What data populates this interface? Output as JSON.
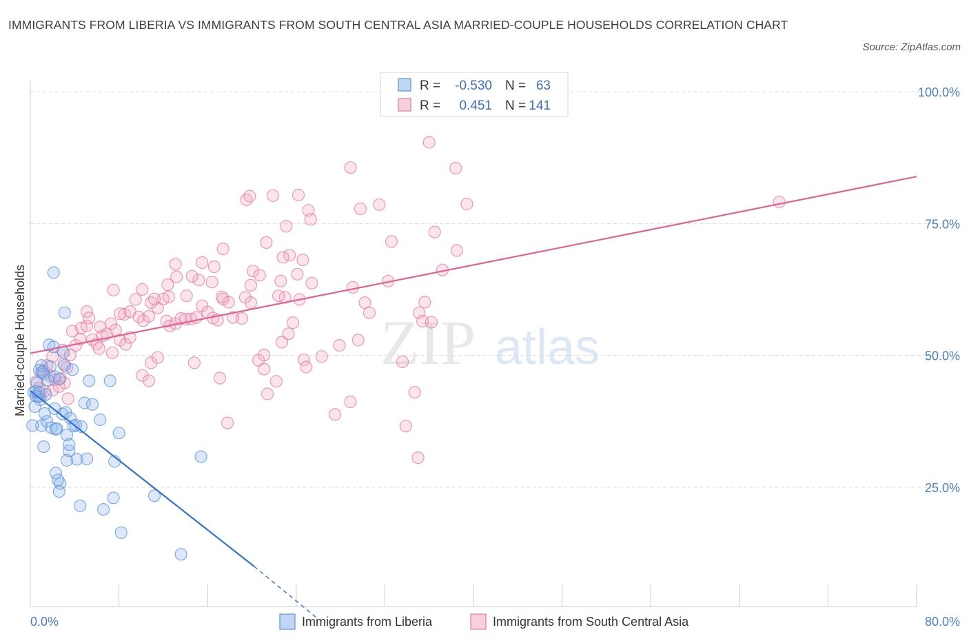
{
  "title": "IMMIGRANTS FROM LIBERIA VS IMMIGRANTS FROM SOUTH CENTRAL ASIA MARRIED-COUPLE HOUSEHOLDS CORRELATION CHART",
  "source": "Source: ZipAtlas.com",
  "watermark": {
    "zip": "ZIP",
    "atlas": "atlas"
  },
  "colors": {
    "blue": "#5b93d9",
    "blue_fill": "rgba(140,180,235,0.30)",
    "blue_line": "#2f72d0",
    "pink": "#e8799c",
    "pink_fill": "rgba(240,170,195,0.30)",
    "pink_line": "#e0628e",
    "grid": "#dcdcdc",
    "axis_text": "#4a7fc4"
  },
  "legend_stats": {
    "rows": [
      {
        "r_label": "R =",
        "r_value": "-0.530",
        "n_label": "N =",
        "n_value": "63"
      },
      {
        "r_label": "R =",
        "r_value": "0.451",
        "n_label": "N =",
        "n_value": "141"
      }
    ]
  },
  "chart_data": {
    "type": "scatter",
    "title": "IMMIGRANTS FROM LIBERIA VS IMMIGRANTS FROM SOUTH CENTRAL ASIA MARRIED-COUPLE HOUSEHOLDS CORRELATION CHART",
    "xlabel": "",
    "ylabel": "Married-couple Households",
    "xlim": [
      0,
      80
    ],
    "ylim": [
      0,
      100
    ],
    "x_tick_labels": [
      "0.0%",
      "80.0%"
    ],
    "y_ticks": [
      25,
      50,
      75,
      100
    ],
    "y_tick_labels": [
      "25.0%",
      "50.0%",
      "75.0%",
      "100.0%"
    ],
    "grid": true,
    "legend_position": "bottom-center",
    "series": [
      {
        "name": "Immigrants from Liberia",
        "color": "blue",
        "R": -0.53,
        "N": 63,
        "trend": {
          "x0": 0,
          "y0": 43.3,
          "x1": 20.2,
          "y1": 10.0,
          "dash_to_x": 26.0,
          "dash_to_y": 0
        },
        "points": [
          [
            0.3,
            43.0
          ],
          [
            0.5,
            42.3
          ],
          [
            0.6,
            44.8
          ],
          [
            0.8,
            47.2
          ],
          [
            1.0,
            48.1
          ],
          [
            1.2,
            46.5
          ],
          [
            0.4,
            40.3
          ],
          [
            0.9,
            41.6
          ],
          [
            1.4,
            42.6
          ],
          [
            1.6,
            45.3
          ],
          [
            1.8,
            47.9
          ],
          [
            2.2,
            46.0
          ],
          [
            2.6,
            45.5
          ],
          [
            1.7,
            52.0
          ],
          [
            2.1,
            51.6
          ],
          [
            1.0,
            36.7
          ],
          [
            1.3,
            39.0
          ],
          [
            1.5,
            37.5
          ],
          [
            1.9,
            36.3
          ],
          [
            2.4,
            36.1
          ],
          [
            2.9,
            38.9
          ],
          [
            3.2,
            39.2
          ],
          [
            2.2,
            39.9
          ],
          [
            3.6,
            38.1
          ],
          [
            3.9,
            36.6
          ],
          [
            4.6,
            36.5
          ],
          [
            3.3,
            34.9
          ],
          [
            3.5,
            31.9
          ],
          [
            3.5,
            33.1
          ],
          [
            4.2,
            30.3
          ],
          [
            5.1,
            30.4
          ],
          [
            4.9,
            41.0
          ],
          [
            5.6,
            40.7
          ],
          [
            5.3,
            45.2
          ],
          [
            7.2,
            45.2
          ],
          [
            6.3,
            37.8
          ],
          [
            8.0,
            35.3
          ],
          [
            7.6,
            29.9
          ],
          [
            2.3,
            27.7
          ],
          [
            2.5,
            26.4
          ],
          [
            2.7,
            25.7
          ],
          [
            2.6,
            24.2
          ],
          [
            3.3,
            30.1
          ],
          [
            4.5,
            21.5
          ],
          [
            6.6,
            20.8
          ],
          [
            7.5,
            23.0
          ],
          [
            8.2,
            16.4
          ],
          [
            11.2,
            23.4
          ],
          [
            13.6,
            12.3
          ],
          [
            15.4,
            30.8
          ],
          [
            2.1,
            65.7
          ],
          [
            3.1,
            58.1
          ],
          [
            3.0,
            50.6
          ],
          [
            3.8,
            47.3
          ],
          [
            3.1,
            48.1
          ],
          [
            0.2,
            36.7
          ],
          [
            1.2,
            32.7
          ],
          [
            2.3,
            36.0
          ],
          [
            4.1,
            36.8
          ],
          [
            0.7,
            42.2
          ],
          [
            1.1,
            46.9
          ],
          [
            0.5,
            43.2
          ],
          [
            0.8,
            43.0
          ]
        ]
      },
      {
        "name": "Immigrants from South Central Asia",
        "color": "pink",
        "R": 0.451,
        "N": 141,
        "trend": {
          "x0": 0,
          "y0": 50.4,
          "x1": 80,
          "y1": 83.9
        },
        "points": [
          [
            0.5,
            45.0
          ],
          [
            0.8,
            43.8
          ],
          [
            1.0,
            46.8
          ],
          [
            1.2,
            47.2
          ],
          [
            1.5,
            48.1
          ],
          [
            1.8,
            46.1
          ],
          [
            2.2,
            45.4
          ],
          [
            2.7,
            45.6
          ],
          [
            3.0,
            48.4
          ],
          [
            3.3,
            47.7
          ],
          [
            2.0,
            43.4
          ],
          [
            2.6,
            44.1
          ],
          [
            3.1,
            44.8
          ],
          [
            3.4,
            41.8
          ],
          [
            1.3,
            43.2
          ],
          [
            0.9,
            42.3
          ],
          [
            2.0,
            49.8
          ],
          [
            2.9,
            51.0
          ],
          [
            3.6,
            50.1
          ],
          [
            4.1,
            51.9
          ],
          [
            4.5,
            53.1
          ],
          [
            3.8,
            54.6
          ],
          [
            4.6,
            55.2
          ],
          [
            5.1,
            55.6
          ],
          [
            5.6,
            53.0
          ],
          [
            6.0,
            52.2
          ],
          [
            6.5,
            53.7
          ],
          [
            6.3,
            55.4
          ],
          [
            6.9,
            54.1
          ],
          [
            7.3,
            56.0
          ],
          [
            7.7,
            54.8
          ],
          [
            8.1,
            52.9
          ],
          [
            8.6,
            52.1
          ],
          [
            8.5,
            57.8
          ],
          [
            9.0,
            58.3
          ],
          [
            9.5,
            60.6
          ],
          [
            9.8,
            57.3
          ],
          [
            10.2,
            56.6
          ],
          [
            10.7,
            57.4
          ],
          [
            10.9,
            60.0
          ],
          [
            11.5,
            59.0
          ],
          [
            12.0,
            60.7
          ],
          [
            12.5,
            61.1
          ],
          [
            12.3,
            56.5
          ],
          [
            12.6,
            55.6
          ],
          [
            13.1,
            56.0
          ],
          [
            13.6,
            57.0
          ],
          [
            14.0,
            56.9
          ],
          [
            14.5,
            56.9
          ],
          [
            15.0,
            57.2
          ],
          [
            15.5,
            59.4
          ],
          [
            16.0,
            58.2
          ],
          [
            16.5,
            57.1
          ],
          [
            16.9,
            56.7
          ],
          [
            17.4,
            60.7
          ],
          [
            17.9,
            60.1
          ],
          [
            18.3,
            57.2
          ],
          [
            19.1,
            57.0
          ],
          [
            19.4,
            61.0
          ],
          [
            19.9,
            60.0
          ],
          [
            14.1,
            61.3
          ],
          [
            15.2,
            64.3
          ],
          [
            16.4,
            63.9
          ],
          [
            17.3,
            61.1
          ],
          [
            12.4,
            63.4
          ],
          [
            13.2,
            64.9
          ],
          [
            14.6,
            65.0
          ],
          [
            15.5,
            67.6
          ],
          [
            16.6,
            66.8
          ],
          [
            17.4,
            70.2
          ],
          [
            13.1,
            67.3
          ],
          [
            7.5,
            62.4
          ],
          [
            10.1,
            62.5
          ],
          [
            11.2,
            60.7
          ],
          [
            8.1,
            57.9
          ],
          [
            5.1,
            58.3
          ],
          [
            5.3,
            57.1
          ],
          [
            7.4,
            50.5
          ],
          [
            6.2,
            51.3
          ],
          [
            9.0,
            53.4
          ],
          [
            10.9,
            48.6
          ],
          [
            11.5,
            49.6
          ],
          [
            10.1,
            46.2
          ],
          [
            10.7,
            45.2
          ],
          [
            14.8,
            48.6
          ],
          [
            17.1,
            45.7
          ],
          [
            17.8,
            37.2
          ],
          [
            20.6,
            49.1
          ],
          [
            21.1,
            50.1
          ],
          [
            21.1,
            47.4
          ],
          [
            21.4,
            42.7
          ],
          [
            22.2,
            45.1
          ],
          [
            22.7,
            52.5
          ],
          [
            23.3,
            54.1
          ],
          [
            23.7,
            56.2
          ],
          [
            24.3,
            60.6
          ],
          [
            23.0,
            61.0
          ],
          [
            22.6,
            64.1
          ],
          [
            19.9,
            63.3
          ],
          [
            20.1,
            66.0
          ],
          [
            20.7,
            65.2
          ],
          [
            21.3,
            71.4
          ],
          [
            22.4,
            61.3
          ],
          [
            24.1,
            65.4
          ],
          [
            23.4,
            69.0
          ],
          [
            22.8,
            68.6
          ],
          [
            19.5,
            79.5
          ],
          [
            19.8,
            80.2
          ],
          [
            21.9,
            80.3
          ],
          [
            24.2,
            80.4
          ],
          [
            23.1,
            74.5
          ],
          [
            25.1,
            77.5
          ],
          [
            25.3,
            75.8
          ],
          [
            24.6,
            68.1
          ],
          [
            25.4,
            63.7
          ],
          [
            24.7,
            49.2
          ],
          [
            24.9,
            47.8
          ],
          [
            26.3,
            49.8
          ],
          [
            27.5,
            38.8
          ],
          [
            27.9,
            51.9
          ],
          [
            28.9,
            41.2
          ],
          [
            29.1,
            62.9
          ],
          [
            29.6,
            52.9
          ],
          [
            30.2,
            60.0
          ],
          [
            30.6,
            58.1
          ],
          [
            29.8,
            77.8
          ],
          [
            31.5,
            78.6
          ],
          [
            32.3,
            64.1
          ],
          [
            32.6,
            71.6
          ],
          [
            33.6,
            48.8
          ],
          [
            33.9,
            36.6
          ],
          [
            35.1,
            58.1
          ],
          [
            35.4,
            56.5
          ],
          [
            35.6,
            60.1
          ],
          [
            36.2,
            56.3
          ],
          [
            36.5,
            73.4
          ],
          [
            37.2,
            66.2
          ],
          [
            38.5,
            69.9
          ],
          [
            39.4,
            78.7
          ],
          [
            38.4,
            85.5
          ],
          [
            34.7,
            43.0
          ],
          [
            35.0,
            30.6
          ],
          [
            36.0,
            90.4
          ],
          [
            28.9,
            85.6
          ],
          [
            67.6,
            79.1
          ]
        ]
      }
    ]
  },
  "bottom_legend": [
    {
      "label": "Immigrants from Liberia"
    },
    {
      "label": "Immigrants from South Central Asia"
    }
  ]
}
